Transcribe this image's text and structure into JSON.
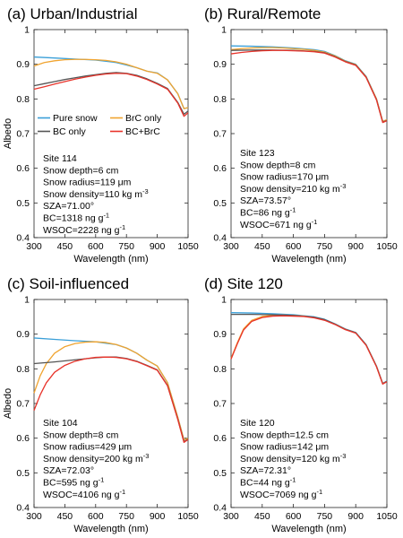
{
  "legend": {
    "entries": [
      {
        "label": "Pure snow",
        "color": "#3a9fd8"
      },
      {
        "label": "BrC only",
        "color": "#f0a430"
      },
      {
        "label": "BC only",
        "color": "#555555"
      },
      {
        "label": "BC+BrC",
        "color": "#e8332a"
      }
    ]
  },
  "colors": {
    "pure": "#3a9fd8",
    "brc": "#f0a430",
    "bc": "#555555",
    "bcbrc": "#e8332a"
  },
  "chart_data": [
    {
      "type": "line",
      "title": "(a) Urban/Industrial",
      "xlabel": "Wavelength (nm)",
      "ylabel": "Albedo",
      "xlim": [
        300,
        1050
      ],
      "ylim": [
        0.4,
        1.0
      ],
      "xticks": [
        300,
        450,
        600,
        750,
        900,
        1050
      ],
      "yticks": [
        0.4,
        0.5,
        0.6,
        0.7,
        0.8,
        0.9,
        1.0
      ],
      "ytick_labels": [
        "0.4",
        "0.5",
        "0.6",
        "0.7",
        "0.8",
        "0.9",
        "1"
      ],
      "show_legend": true,
      "info": [
        "Site 114",
        "Snow depth=6 cm",
        "Snow radius=119 μm",
        "Snow density=110 kg m-3",
        "SZA=71.00°",
        "BC=1318 ng g-1",
        "WSOC=2228 ng g-1"
      ],
      "series": [
        {
          "key": "pure",
          "x": [
            300,
            400,
            500,
            600,
            700,
            750,
            800,
            850,
            900,
            950,
            1000,
            1030,
            1050
          ],
          "y": [
            0.921,
            0.918,
            0.915,
            0.912,
            0.905,
            0.898,
            0.89,
            0.88,
            0.875,
            0.855,
            0.815,
            0.772,
            0.775
          ]
        },
        {
          "key": "brc",
          "x": [
            300,
            350,
            400,
            450,
            500,
            550,
            600,
            650,
            700,
            750,
            800,
            850,
            900,
            950,
            1000,
            1030,
            1050
          ],
          "y": [
            0.895,
            0.905,
            0.91,
            0.913,
            0.914,
            0.914,
            0.913,
            0.911,
            0.907,
            0.9,
            0.89,
            0.88,
            0.874,
            0.855,
            0.815,
            0.772,
            0.775
          ]
        },
        {
          "key": "bc",
          "x": [
            300,
            350,
            400,
            450,
            500,
            550,
            600,
            650,
            700,
            750,
            800,
            850,
            900,
            950,
            1000,
            1030,
            1050
          ],
          "y": [
            0.838,
            0.844,
            0.85,
            0.856,
            0.861,
            0.866,
            0.87,
            0.874,
            0.876,
            0.874,
            0.868,
            0.858,
            0.845,
            0.83,
            0.79,
            0.756,
            0.765
          ]
        },
        {
          "key": "bcbrc",
          "x": [
            300,
            350,
            400,
            450,
            500,
            550,
            600,
            650,
            700,
            750,
            800,
            850,
            900,
            950,
            1000,
            1030,
            1050
          ],
          "y": [
            0.828,
            0.835,
            0.843,
            0.85,
            0.857,
            0.863,
            0.868,
            0.872,
            0.874,
            0.873,
            0.866,
            0.856,
            0.843,
            0.828,
            0.788,
            0.75,
            0.76
          ]
        }
      ]
    },
    {
      "type": "line",
      "title": "(b) Rural/Remote",
      "xlabel": "Wavelength (nm)",
      "ylabel": "",
      "xlim": [
        300,
        1050
      ],
      "ylim": [
        0.4,
        1.0
      ],
      "xticks": [
        300,
        450,
        600,
        750,
        900,
        1050
      ],
      "yticks": [
        0.4,
        0.5,
        0.6,
        0.7,
        0.8,
        0.9,
        1.0
      ],
      "ytick_labels": [
        "0.4",
        "0.5",
        "0.6",
        "0.7",
        "0.8",
        "0.9",
        "1"
      ],
      "show_legend": false,
      "info": [
        "Site 123",
        "Snow depth=8 cm",
        "Snow radius=170 μm",
        "Snow density=210 kg m-3",
        "SZA=73.57°",
        "BC=86 ng g-1",
        "WSOC=671 ng g-1"
      ],
      "series": [
        {
          "key": "pure",
          "x": [
            300,
            400,
            500,
            600,
            700,
            750,
            800,
            850,
            900,
            950,
            1000,
            1030,
            1050
          ],
          "y": [
            0.953,
            0.952,
            0.95,
            0.947,
            0.942,
            0.937,
            0.925,
            0.91,
            0.9,
            0.865,
            0.8,
            0.735,
            0.74
          ]
        },
        {
          "key": "brc",
          "x": [
            300,
            350,
            400,
            450,
            500,
            550,
            600,
            650,
            700,
            750,
            800,
            850,
            900,
            950,
            1000,
            1030,
            1050
          ],
          "y": [
            0.942,
            0.945,
            0.947,
            0.948,
            0.948,
            0.947,
            0.945,
            0.943,
            0.94,
            0.935,
            0.924,
            0.909,
            0.899,
            0.864,
            0.8,
            0.735,
            0.74
          ]
        },
        {
          "key": "bc",
          "x": [
            300,
            400,
            500,
            600,
            700,
            750,
            800,
            850,
            900,
            950,
            1000,
            1030,
            1050
          ],
          "y": [
            0.94,
            0.941,
            0.941,
            0.94,
            0.937,
            0.933,
            0.922,
            0.908,
            0.898,
            0.863,
            0.798,
            0.733,
            0.738
          ]
        },
        {
          "key": "bcbrc",
          "x": [
            300,
            350,
            400,
            450,
            500,
            550,
            600,
            650,
            700,
            750,
            800,
            850,
            900,
            950,
            1000,
            1030,
            1050
          ],
          "y": [
            0.93,
            0.934,
            0.937,
            0.939,
            0.94,
            0.94,
            0.939,
            0.938,
            0.936,
            0.932,
            0.921,
            0.907,
            0.897,
            0.862,
            0.797,
            0.732,
            0.737
          ]
        }
      ]
    },
    {
      "type": "line",
      "title": "(c) Soil-influenced",
      "xlabel": "Wavelength (nm)",
      "ylabel": "Albedo",
      "xlim": [
        300,
        1050
      ],
      "ylim": [
        0.4,
        1.0
      ],
      "xticks": [
        300,
        450,
        600,
        750,
        900,
        1050
      ],
      "yticks": [
        0.4,
        0.5,
        0.6,
        0.7,
        0.8,
        0.9,
        1.0
      ],
      "ytick_labels": [
        "0.4",
        "0.5",
        "0.6",
        "0.7",
        "0.8",
        "0.9",
        "1"
      ],
      "show_legend": false,
      "info": [
        "Site 104",
        "Snow depth=8 cm",
        "Snow radius=429 μm",
        "Snow density=200 kg m-3",
        "SZA=72.03°",
        "BC=595 ng g-1",
        "WSOC=4106 ng g-1"
      ],
      "series": [
        {
          "key": "pure",
          "x": [
            300,
            400,
            500,
            600,
            700,
            750,
            800,
            850,
            900,
            950,
            1000,
            1030,
            1050
          ],
          "y": [
            0.889,
            0.885,
            0.881,
            0.878,
            0.87,
            0.86,
            0.845,
            0.825,
            0.808,
            0.76,
            0.66,
            0.595,
            0.6
          ]
        },
        {
          "key": "brc",
          "x": [
            300,
            330,
            360,
            400,
            450,
            500,
            550,
            600,
            650,
            700,
            750,
            800,
            850,
            900,
            950,
            1000,
            1030,
            1050
          ],
          "y": [
            0.73,
            0.78,
            0.815,
            0.845,
            0.864,
            0.873,
            0.877,
            0.878,
            0.876,
            0.87,
            0.86,
            0.845,
            0.825,
            0.808,
            0.76,
            0.66,
            0.595,
            0.6
          ]
        },
        {
          "key": "bc",
          "x": [
            300,
            400,
            500,
            600,
            650,
            700,
            750,
            800,
            850,
            900,
            950,
            1000,
            1030,
            1050
          ],
          "y": [
            0.815,
            0.82,
            0.826,
            0.832,
            0.834,
            0.834,
            0.83,
            0.822,
            0.81,
            0.797,
            0.752,
            0.655,
            0.59,
            0.597
          ]
        },
        {
          "key": "bcbrc",
          "x": [
            300,
            330,
            360,
            400,
            450,
            500,
            550,
            600,
            650,
            700,
            750,
            800,
            850,
            900,
            950,
            1000,
            1030,
            1050
          ],
          "y": [
            0.68,
            0.725,
            0.76,
            0.79,
            0.81,
            0.822,
            0.829,
            0.833,
            0.834,
            0.833,
            0.829,
            0.821,
            0.809,
            0.796,
            0.751,
            0.654,
            0.588,
            0.596
          ]
        }
      ]
    },
    {
      "type": "line",
      "title": "(d) Site 120",
      "xlabel": "Wavelength (nm)",
      "ylabel": "",
      "xlim": [
        300,
        1050
      ],
      "ylim": [
        0.4,
        1.0
      ],
      "xticks": [
        300,
        450,
        600,
        750,
        900,
        1050
      ],
      "yticks": [
        0.4,
        0.5,
        0.6,
        0.7,
        0.8,
        0.9,
        1.0
      ],
      "ytick_labels": [
        "0.4",
        "0.5",
        "0.6",
        "0.7",
        "0.8",
        "0.9",
        "1"
      ],
      "show_legend": false,
      "info": [
        "Site 120",
        "Snow depth=12.5 cm",
        "Snow radius=142 μm",
        "Snow density=120 kg m-3",
        "SZA=72.31°",
        "BC=44 ng g-1",
        "WSOC=7069 ng g-1"
      ],
      "series": [
        {
          "key": "pure",
          "x": [
            300,
            400,
            500,
            600,
            700,
            750,
            800,
            850,
            900,
            950,
            1000,
            1030,
            1050
          ],
          "y": [
            0.962,
            0.961,
            0.959,
            0.956,
            0.95,
            0.943,
            0.93,
            0.915,
            0.905,
            0.87,
            0.808,
            0.758,
            0.765
          ]
        },
        {
          "key": "brc",
          "x": [
            300,
            330,
            360,
            400,
            450,
            500,
            550,
            600,
            650,
            700,
            750,
            800,
            850,
            900,
            950,
            1000,
            1030,
            1050
          ],
          "y": [
            0.83,
            0.875,
            0.915,
            0.94,
            0.951,
            0.954,
            0.955,
            0.954,
            0.952,
            0.948,
            0.941,
            0.929,
            0.914,
            0.904,
            0.869,
            0.807,
            0.757,
            0.764
          ]
        },
        {
          "key": "bc",
          "x": [
            300,
            400,
            500,
            600,
            700,
            750,
            800,
            850,
            900,
            950,
            1000,
            1030,
            1050
          ],
          "y": [
            0.957,
            0.957,
            0.956,
            0.954,
            0.949,
            0.942,
            0.929,
            0.914,
            0.904,
            0.869,
            0.807,
            0.757,
            0.764
          ]
        },
        {
          "key": "bcbrc",
          "x": [
            300,
            330,
            360,
            400,
            450,
            500,
            550,
            600,
            650,
            700,
            750,
            800,
            850,
            900,
            950,
            1000,
            1030,
            1050
          ],
          "y": [
            0.828,
            0.872,
            0.912,
            0.937,
            0.948,
            0.952,
            0.953,
            0.952,
            0.951,
            0.947,
            0.94,
            0.928,
            0.913,
            0.903,
            0.868,
            0.806,
            0.756,
            0.763
          ]
        }
      ]
    }
  ]
}
